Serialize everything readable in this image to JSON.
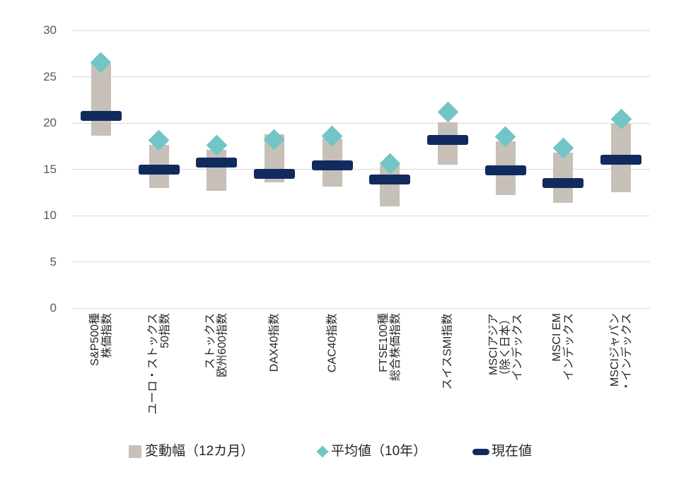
{
  "chart_data": {
    "type": "bar",
    "subtype": "floating-range-with-markers",
    "title": "",
    "ylim": [
      0,
      30
    ],
    "yticks": [
      30,
      25,
      20,
      15,
      10,
      5,
      0
    ],
    "grid": true,
    "legend_position": "bottom",
    "categories": [
      {
        "label": "S&P500種株価指数",
        "lines": [
          "S&P500種",
          "株価指数"
        ]
      },
      {
        "label": "ユーロ・ストックス50指数",
        "lines": [
          "ユーロ・ストックス",
          "50指数"
        ]
      },
      {
        "label": "ストックス欧州600指数",
        "lines": [
          "ストックス",
          "欧州600指数"
        ]
      },
      {
        "label": "DAX40指数",
        "lines": [
          "DAX40指数"
        ]
      },
      {
        "label": "CAC40指数",
        "lines": [
          "CAC40指数"
        ]
      },
      {
        "label": "FTSE100種総合株価指数",
        "lines": [
          "FTSE100種",
          "総合株価指数"
        ]
      },
      {
        "label": "スイスSMI指数",
        "lines": [
          "スイスSMI指数"
        ]
      },
      {
        "label": "MSCIアジア（除く日本）インデックス",
        "lines": [
          "MSCIアジア",
          "（除く日本）",
          "インデックス"
        ]
      },
      {
        "label": "MSCI EMインデックス",
        "lines": [
          "MSCI EM",
          "インデックス"
        ]
      },
      {
        "label": "MSCIジャパン・インデックス",
        "lines": [
          "MSCIジャパン",
          "・インデックス"
        ]
      }
    ],
    "series": [
      {
        "name": "変動幅（12カ月）",
        "marker": "bar-range",
        "color": "#c6c0b9",
        "low": [
          18.6,
          13.0,
          12.7,
          13.6,
          13.1,
          11.0,
          15.5,
          12.2,
          11.4,
          12.5
        ],
        "high": [
          26.3,
          17.6,
          17.1,
          18.8,
          18.3,
          15.4,
          20.1,
          18.0,
          16.8,
          19.9
        ]
      },
      {
        "name": "平均値（10年）",
        "marker": "diamond",
        "color": "#72c4c6",
        "values": [
          26.5,
          18.1,
          17.6,
          18.2,
          18.6,
          15.6,
          21.2,
          18.5,
          17.3,
          20.4
        ]
      },
      {
        "name": "現在値",
        "marker": "dash",
        "color": "#112b5e",
        "values": [
          20.8,
          15.0,
          15.7,
          14.5,
          15.4,
          13.9,
          18.2,
          14.9,
          13.5,
          16.0
        ]
      }
    ]
  },
  "colors": {
    "background": "#ffffff",
    "gridline": "#d9d9d9",
    "y_tick_text": "#595959",
    "category_text": "#262626",
    "legend_text": "#262626",
    "range_bar": "#c6c0b9",
    "average_diamond": "#72c4c6",
    "current_dash": "#112b5e"
  }
}
